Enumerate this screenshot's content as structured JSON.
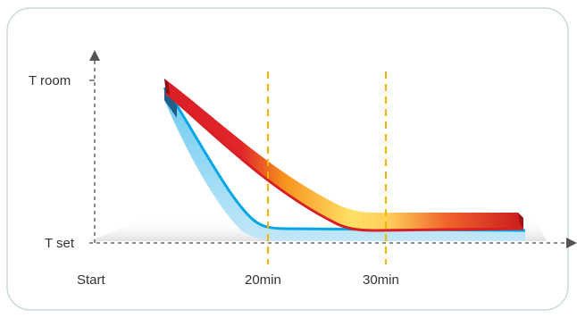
{
  "diagram": {
    "y_labels": {
      "room": "T room",
      "set": "T set"
    },
    "x_labels": {
      "start": "Start",
      "mark1": "20min",
      "mark2": "30min"
    },
    "colors": {
      "frame": "#c8dcd0",
      "axis": "#666666",
      "marker": "#f4b400",
      "warm_curve": "#d91f26",
      "warm_mid": "#f7941d",
      "warm_light": "#ffe066",
      "cool_curve": "#00a6e6",
      "cool_light": "#a8dcf5",
      "shadow": "#d9d9d9"
    }
  }
}
